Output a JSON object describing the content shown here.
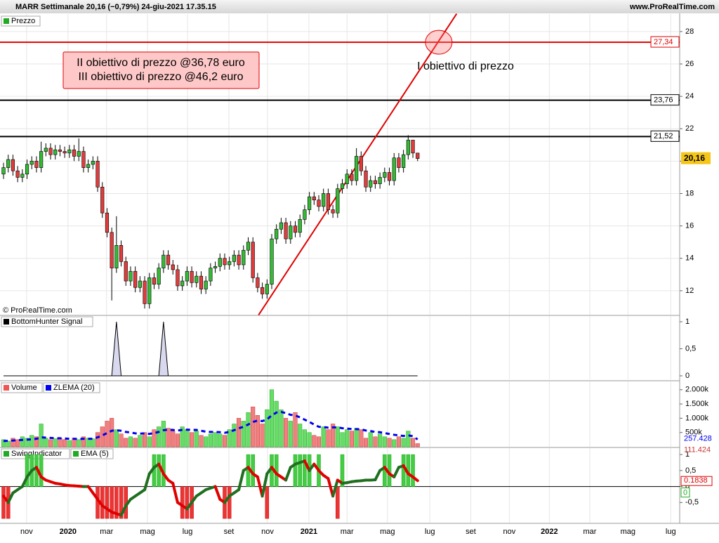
{
  "header": {
    "title": "MARR Settimanale 20,16 (−0,79%) 24-giu-2021 17.35.15",
    "site": "www.ProRealTime.com",
    "copyright": "© ProRealTime.com"
  },
  "chart_data": [
    {
      "type": "candlestick",
      "name": "Prezzo",
      "xlim": [
        -0.75,
        143.7
      ],
      "xticks": [
        {
          "value": 4.9,
          "label": "nov"
        },
        {
          "value": 13.7,
          "label": "2020"
        },
        {
          "value": 21.9,
          "label": "mar"
        },
        {
          "value": 30.6,
          "label": "mag"
        },
        {
          "value": 39.1,
          "label": "lug"
        },
        {
          "value": 47.9,
          "label": "set"
        },
        {
          "value": 56.1,
          "label": "nov"
        },
        {
          "value": 64.9,
          "label": "2021"
        },
        {
          "value": 73.0,
          "label": "mar"
        },
        {
          "value": 81.6,
          "label": "mag"
        },
        {
          "value": 90.6,
          "label": "lug"
        },
        {
          "value": 99.3,
          "label": "set"
        },
        {
          "value": 107.5,
          "label": "nov"
        },
        {
          "value": 116,
          "label": "2022"
        },
        {
          "value": 124.6,
          "label": "mar"
        },
        {
          "value": 132.7,
          "label": "mag"
        },
        {
          "value": 141.8,
          "label": "lug"
        }
      ],
      "ylim": [
        10.52,
        29.08
      ],
      "yticks": [
        12,
        14,
        16,
        18,
        20,
        22,
        24,
        26,
        28
      ],
      "grid": true,
      "up_color": "#33bb33",
      "down_color": "#e23b3b",
      "open": [
        19.2,
        19.6,
        20.1,
        19.4,
        19.0,
        19.2,
        19.8,
        20.0,
        19.6,
        20.6,
        20.8,
        20.4,
        20.7,
        20.6,
        20.5,
        20.7,
        20.3,
        20.6,
        19.6,
        19.8,
        20.0,
        18.4,
        16.8,
        15.6,
        13.4,
        14.8,
        13.8,
        12.6,
        13.2,
        12.2,
        12.6,
        11.2,
        12.8,
        12.4,
        13.4,
        14.2,
        13.6,
        13.3,
        12.3,
        12.6,
        13.2,
        12.5,
        12.9,
        12.1,
        12.6,
        13.4,
        13.5,
        14.0,
        13.6,
        13.8,
        14.2,
        13.6,
        14.5,
        15.0,
        12.8,
        12.2,
        11.8,
        12.4,
        15.2,
        15.8,
        16.2,
        15.2,
        16.0,
        15.6,
        16.4,
        17.0,
        17.8,
        17.6,
        17.2,
        18.0,
        17.0,
        16.8,
        18.3,
        18.6,
        19.2,
        18.8,
        20.3,
        19.4,
        18.4,
        18.8,
        18.6,
        19.0,
        19.3,
        18.8,
        20.2,
        19.6,
        20.4,
        21.3,
        20.5
      ],
      "high": [
        19.9,
        20.4,
        20.4,
        19.7,
        19.5,
        20.1,
        20.3,
        20.3,
        21.2,
        21.1,
        21.1,
        21.0,
        21.0,
        20.9,
        21.0,
        21.0,
        21.4,
        20.9,
        20.1,
        20.3,
        20.3,
        18.7,
        17.1,
        15.9,
        16.6,
        15.1,
        14.1,
        13.5,
        13.5,
        12.9,
        12.9,
        13.1,
        13.1,
        13.7,
        14.5,
        14.5,
        13.9,
        13.6,
        12.9,
        13.5,
        13.5,
        13.2,
        13.2,
        12.9,
        13.7,
        13.8,
        14.3,
        14.3,
        14.1,
        14.5,
        14.5,
        14.8,
        15.3,
        15.3,
        13.1,
        12.5,
        12.7,
        15.5,
        16.1,
        16.5,
        16.5,
        16.3,
        16.3,
        16.7,
        17.3,
        18.1,
        18.1,
        17.9,
        18.3,
        18.3,
        17.3,
        18.6,
        18.9,
        19.5,
        19.5,
        20.8,
        20.6,
        19.7,
        19.1,
        19.1,
        19.3,
        19.6,
        19.6,
        20.5,
        20.5,
        20.7,
        21.6,
        21.3,
        20.5
      ],
      "low": [
        18.9,
        19.3,
        19.1,
        18.7,
        18.7,
        18.9,
        19.5,
        19.3,
        19.3,
        20.3,
        20.1,
        20.1,
        20.3,
        20.2,
        20.2,
        20.0,
        20.0,
        19.3,
        19.3,
        19.5,
        18.1,
        16.5,
        15.3,
        11.4,
        13.1,
        13.5,
        12.3,
        12.3,
        11.9,
        11.9,
        10.9,
        10.9,
        12.1,
        12.1,
        13.1,
        13.3,
        13.0,
        12.0,
        12.0,
        12.3,
        12.2,
        12.2,
        11.8,
        11.8,
        12.3,
        13.1,
        13.2,
        13.3,
        13.3,
        13.5,
        13.3,
        13.3,
        14.2,
        12.5,
        11.9,
        11.5,
        11.5,
        12.1,
        14.9,
        15.5,
        14.9,
        14.9,
        15.3,
        15.3,
        16.1,
        16.7,
        17.3,
        16.9,
        16.9,
        16.7,
        16.5,
        16.5,
        18.0,
        18.3,
        18.5,
        18.5,
        19.1,
        18.1,
        18.1,
        18.3,
        18.3,
        18.7,
        18.5,
        18.5,
        19.3,
        19.3,
        20.1,
        20.2,
        20.0
      ],
      "close": [
        19.6,
        20.1,
        19.4,
        19.0,
        19.2,
        19.8,
        20.0,
        19.6,
        20.6,
        20.8,
        20.4,
        20.7,
        20.6,
        20.5,
        20.7,
        20.3,
        20.6,
        19.6,
        19.8,
        20.0,
        18.4,
        16.8,
        15.6,
        13.4,
        14.8,
        13.8,
        12.6,
        13.2,
        12.2,
        12.6,
        11.2,
        12.8,
        12.4,
        13.4,
        14.2,
        13.6,
        13.3,
        12.3,
        12.6,
        13.2,
        12.5,
        12.9,
        12.1,
        12.6,
        13.4,
        13.5,
        14.0,
        13.6,
        13.8,
        14.2,
        13.6,
        14.5,
        15.0,
        12.8,
        12.2,
        11.8,
        12.4,
        15.2,
        15.8,
        16.2,
        15.2,
        16.0,
        15.6,
        16.4,
        17.0,
        17.8,
        17.6,
        17.2,
        18.0,
        17.0,
        16.8,
        18.3,
        18.6,
        19.2,
        18.8,
        20.3,
        19.4,
        18.4,
        18.8,
        18.6,
        19.0,
        19.3,
        18.8,
        20.2,
        19.6,
        20.4,
        21.3,
        20.5,
        20.16
      ],
      "last": {
        "value": 20.16,
        "label": "20,16"
      },
      "levels": [
        {
          "value": 27.34,
          "label": "27,34",
          "color": "#e00000"
        },
        {
          "value": 23.76,
          "label": "23,76",
          "color": "#000000"
        },
        {
          "value": 21.52,
          "label": "21,52",
          "color": "#000000"
        }
      ],
      "trendline": {
        "x": [
          54.2,
          96.3
        ],
        "y": [
          10.5,
          29.1
        ],
        "color": "#e00000"
      },
      "target_circle": {
        "x": 92.5,
        "y": 27.34
      },
      "annotations": [
        "II obiettivo di prezzo @36,78 euro",
        "III obiettivo di prezzo @46,2 euro",
        "I obiettivo di prezzo"
      ]
    },
    {
      "type": "area",
      "name": "BottomHunter Signal",
      "ylim": [
        -0.065,
        1.104
      ],
      "yticks": [
        0,
        {
          "value": 0.5,
          "label": "0,5"
        },
        1
      ],
      "values": [
        0,
        0,
        0,
        0,
        0,
        0,
        0,
        0,
        0,
        0,
        0,
        0,
        0,
        0,
        0,
        0,
        0,
        0,
        0,
        0,
        0,
        0,
        0,
        0,
        1,
        0,
        0,
        0,
        0,
        0,
        0,
        0,
        0,
        0,
        1,
        0,
        0,
        0,
        0,
        0,
        0,
        0,
        0,
        0,
        0,
        0,
        0,
        0,
        0,
        0,
        0,
        0,
        0,
        0,
        0,
        0,
        0,
        0,
        0,
        0,
        0,
        0,
        0,
        0,
        0,
        0,
        0,
        0,
        0,
        0,
        0,
        0,
        0,
        0,
        0,
        0,
        0,
        0,
        0,
        0,
        0,
        0,
        0,
        0,
        0,
        0,
        0,
        0,
        0
      ],
      "color": "#d8d8ee"
    },
    {
      "type": "bar",
      "ylim": [
        0,
        2290
      ],
      "yticks": [
        {
          "value": 500,
          "label": "500k"
        },
        {
          "value": 1000,
          "label": "1.000k"
        },
        {
          "value": 1500,
          "label": "1.500k"
        },
        {
          "value": 2000,
          "label": "2.000k"
        }
      ],
      "series": [
        {
          "name": "Volume",
          "values": [
            250,
            200,
            300,
            250,
            350,
            300,
            400,
            350,
            800,
            300,
            250,
            280,
            300,
            250,
            220,
            300,
            250,
            350,
            300,
            280,
            500,
            700,
            900,
            1000,
            600,
            450,
            300,
            350,
            300,
            400,
            500,
            350,
            600,
            700,
            900,
            650,
            550,
            450,
            700,
            600,
            500,
            550,
            400,
            350,
            450,
            500,
            450,
            400,
            600,
            800,
            1000,
            900,
            1200,
            1400,
            1100,
            800,
            1300,
            2000,
            1600,
            1300,
            1000,
            900,
            1200,
            800,
            600,
            500,
            400,
            350,
            700,
            600,
            800,
            700,
            500,
            600,
            550,
            650,
            600,
            300,
            500,
            350,
            450,
            350,
            300,
            250,
            350,
            300,
            550,
            300,
            111.424
          ],
          "last_label": "111.424"
        },
        {
          "name": "ZLEMA (20)",
          "color": "#0000ee",
          "values": [
            200,
            210,
            220,
            230,
            240,
            250,
            260,
            280,
            330,
            320,
            310,
            300,
            300,
            290,
            280,
            280,
            270,
            280,
            280,
            280,
            330,
            400,
            480,
            560,
            580,
            560,
            520,
            500,
            470,
            460,
            470,
            450,
            480,
            520,
            580,
            600,
            590,
            570,
            590,
            600,
            590,
            590,
            560,
            530,
            520,
            520,
            510,
            490,
            520,
            580,
            650,
            700,
            780,
            870,
            920,
            900,
            960,
            1100,
            1200,
            1220,
            1180,
            1120,
            1100,
            1030,
            950,
            870,
            780,
            700,
            690,
            670,
            680,
            680,
            650,
            640,
            620,
            620,
            610,
            570,
            550,
            520,
            510,
            480,
            450,
            420,
            400,
            380,
            400,
            370,
            257.428
          ],
          "last_label": "257.428"
        }
      ]
    },
    {
      "type": "swing",
      "ylim": [
        -1.13,
        1.2
      ],
      "yticks": [
        {
          "value": -0.5,
          "label": "-0,5"
        },
        0,
        {
          "value": 0.5,
          "label": "0,5"
        },
        1
      ],
      "series": [
        {
          "name": "SwingIndicator",
          "values": [
            -1,
            -1,
            0,
            0,
            0,
            1,
            1,
            1,
            1,
            0,
            0,
            0,
            0,
            0,
            0,
            0,
            0,
            0,
            0,
            0,
            -1,
            -1,
            -1,
            -1,
            -1,
            -1,
            -1,
            0,
            0,
            0,
            0,
            0,
            1,
            1,
            1,
            0,
            0,
            0,
            -1,
            -1,
            -1,
            0,
            0,
            0,
            0,
            0,
            0,
            -1,
            -1,
            0,
            0,
            0,
            1,
            1,
            0,
            0,
            -1,
            1,
            1,
            0,
            0,
            0,
            1,
            1,
            1,
            1,
            0,
            1,
            0,
            0,
            0,
            -1,
            1,
            0,
            0,
            0,
            0,
            0,
            0,
            0,
            0,
            1,
            1,
            0,
            0,
            1,
            1,
            1,
            0
          ],
          "last_label": "0"
        },
        {
          "name": "EMA (5)",
          "values": [
            -0.3,
            -0.5,
            -0.2,
            -0.1,
            0.0,
            0.3,
            0.5,
            0.6,
            0.3,
            0.2,
            0.15,
            0.1,
            0.08,
            0.05,
            0.03,
            0.02,
            0.01,
            0.0,
            0.0,
            -0.2,
            -0.4,
            -0.6,
            -0.7,
            -0.8,
            -0.85,
            -0.9,
            -0.6,
            -0.4,
            -0.3,
            -0.2,
            -0.1,
            0.4,
            0.6,
            0.7,
            0.4,
            0.2,
            0.1,
            -0.5,
            -0.6,
            -0.7,
            -0.5,
            -0.3,
            -0.2,
            -0.1,
            -0.05,
            0.0,
            -0.4,
            -0.5,
            -0.3,
            -0.2,
            -0.1,
            0.5,
            0.6,
            0.4,
            0.3,
            -0.3,
            0.4,
            0.6,
            0.4,
            0.3,
            0.2,
            0.6,
            0.7,
            0.75,
            0.8,
            0.5,
            0.7,
            0.5,
            0.35,
            0.25,
            -0.3,
            0.2,
            0.1,
            0.12,
            0.15,
            0.17,
            0.18,
            0.2,
            0.2,
            0.21,
            0.5,
            0.6,
            0.4,
            0.3,
            0.6,
            0.65,
            0.4,
            0.3,
            0.1838
          ],
          "last_label": "0.1838"
        }
      ]
    }
  ]
}
